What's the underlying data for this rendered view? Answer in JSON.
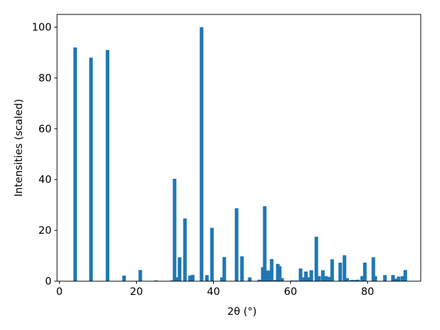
{
  "chart_data": {
    "type": "bar",
    "x_label": "2θ (°)",
    "y_label": "Intensities (scaled)",
    "color": "#1f77b4",
    "x": [
      4.1,
      8.2,
      12.5,
      16.8,
      21.0,
      25.1,
      29.2,
      29.9,
      30.5,
      31.2,
      32.6,
      33.9,
      34.6,
      36.9,
      38.3,
      39.6,
      42.2,
      42.8,
      46.0,
      47.4,
      49.4,
      51.9,
      52.8,
      53.3,
      54.2,
      55.1,
      56.1,
      56.7,
      57.2,
      57.8,
      60.4,
      61.5,
      62.6,
      63.3,
      64.0,
      64.7,
      65.4,
      66.7,
      67.4,
      68.4,
      69.2,
      70.1,
      70.8,
      72.9,
      74.0,
      74.7,
      75.8,
      76.6,
      77.5,
      78.6,
      79.3,
      81.5,
      82.0,
      84.5,
      86.6,
      87.3,
      88.1,
      89.1,
      89.8
    ],
    "values": [
      92,
      88,
      91,
      2.2,
      4.4,
      0.3,
      0.3,
      40.3,
      1.5,
      9.4,
      24.7,
      2.2,
      2.5,
      100,
      2.4,
      21,
      1.5,
      9.5,
      28.7,
      9.8,
      1.5,
      0.6,
      5.5,
      29.5,
      4.2,
      8.7,
      0.5,
      6.8,
      5.9,
      1.2,
      0.3,
      0.3,
      5.0,
      1.5,
      3.8,
      1.5,
      4.3,
      17.5,
      2,
      4.3,
      2,
      1.7,
      8.6,
      7.3,
      10.2,
      1.2,
      0.5,
      0.5,
      0.6,
      2,
      7.3,
      9.4,
      2,
      2.4,
      2.4,
      1,
      1.8,
      2,
      4.4
    ],
    "xlim": [
      -0.6,
      93.8
    ],
    "xticks": [
      0,
      20,
      40,
      60,
      80
    ],
    "ylim": [
      0,
      105
    ],
    "yticks": [
      0,
      20,
      40,
      60,
      80,
      100
    ]
  }
}
